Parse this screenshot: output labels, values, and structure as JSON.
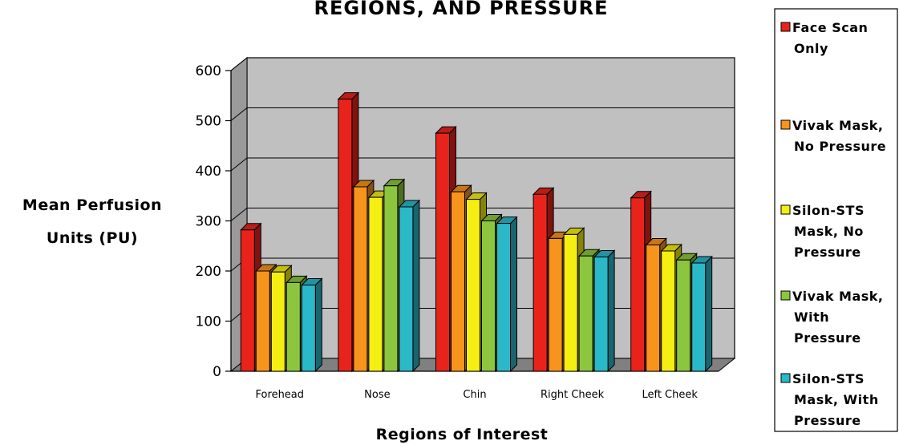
{
  "chart_data": {
    "type": "bar",
    "title": "REGIONS, AND PRESSURE",
    "xlabel": "Regions of Interest",
    "ylabel": [
      "Mean Perfusion",
      "Units (PU)"
    ],
    "ylim": [
      0,
      600
    ],
    "yticks": [
      "0",
      "100",
      "200",
      "300",
      "400",
      "500",
      "600"
    ],
    "categories": [
      "Forehead",
      "Nose",
      "Chin",
      "Right Cheek",
      "Left Cheek"
    ],
    "series": [
      {
        "name": [
          "Face Scan",
          "Only"
        ],
        "color": "#e8231b",
        "values": [
          282,
          543,
          475,
          353,
          346
        ]
      },
      {
        "name": [
          "Vivak Mask,",
          "No Pressure"
        ],
        "color": "#f7941d",
        "values": [
          200,
          368,
          358,
          265,
          252
        ]
      },
      {
        "name": [
          "Silon-STS",
          "Mask, No",
          "Pressure"
        ],
        "color": "#f5ee12",
        "values": [
          198,
          347,
          343,
          273,
          240
        ]
      },
      {
        "name": [
          "Vivak Mask,",
          "With",
          "Pressure"
        ],
        "color": "#8cc63f",
        "values": [
          177,
          370,
          300,
          230,
          222
        ]
      },
      {
        "name": [
          "Silon-STS",
          "Mask, With",
          "Pressure"
        ],
        "color": "#2bb8c9",
        "values": [
          172,
          328,
          295,
          228,
          216
        ]
      }
    ],
    "grid": true,
    "legend_position": "right",
    "style": "3d-clustered"
  }
}
